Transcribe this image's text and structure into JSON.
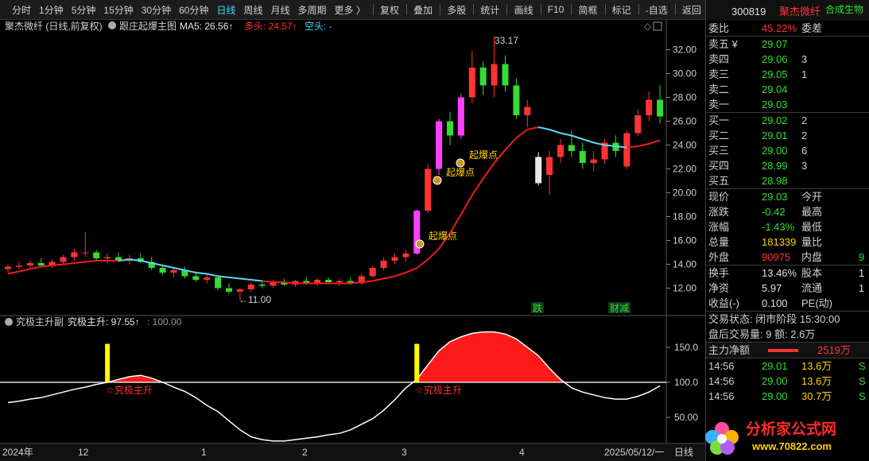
{
  "toolbar": {
    "periods": [
      "分时",
      "1分钟",
      "5分钟",
      "15分钟",
      "30分钟",
      "60分钟",
      "日线",
      "周线",
      "月线",
      "多周期",
      "更多 〉"
    ],
    "tools": [
      "复权",
      "叠加",
      "多股",
      "统计",
      "画线",
      "F10",
      "简框",
      "标记",
      "-自选",
      "返回"
    ]
  },
  "chart_data": [
    {
      "type": "candlestick",
      "title": "聚杰微纤 (日线,前复权)",
      "indicator": "跟庄起爆主图",
      "ma5": "MA5: 26.56↑",
      "bull": "多头: 24.57↑",
      "bear": "空头: -",
      "candles": [
        [
          13.6,
          14.0,
          13.3,
          13.8
        ],
        [
          13.8,
          14.2,
          13.6,
          13.9
        ],
        [
          13.9,
          14.3,
          13.7,
          14.1
        ],
        [
          14.1,
          14.5,
          13.8,
          13.9
        ],
        [
          13.9,
          14.4,
          13.7,
          14.2
        ],
        [
          14.2,
          14.8,
          14.0,
          14.6
        ],
        [
          14.6,
          15.3,
          14.3,
          15.0
        ],
        [
          15.0,
          16.7,
          14.6,
          15.0
        ],
        [
          15.0,
          15.2,
          14.3,
          14.5
        ],
        [
          14.5,
          14.9,
          14.1,
          14.6
        ],
        [
          14.6,
          15.0,
          14.2,
          14.3
        ],
        [
          14.3,
          14.8,
          14.0,
          14.5
        ],
        [
          14.5,
          14.9,
          14.1,
          14.2
        ],
        [
          14.2,
          14.6,
          13.5,
          13.7
        ],
        [
          13.7,
          14.0,
          13.1,
          13.3
        ],
        [
          13.3,
          13.7,
          12.9,
          13.5
        ],
        [
          13.5,
          13.8,
          12.8,
          13.0
        ],
        [
          13.0,
          13.4,
          12.5,
          12.7
        ],
        [
          12.7,
          13.2,
          12.4,
          12.9
        ],
        [
          12.9,
          13.1,
          11.8,
          12.0
        ],
        [
          12.0,
          12.4,
          11.5,
          11.7
        ],
        [
          11.7,
          12.0,
          11.0,
          11.9
        ],
        [
          11.9,
          12.5,
          11.7,
          12.3
        ],
        [
          12.3,
          12.6,
          12.0,
          12.2
        ],
        [
          12.2,
          12.7,
          12.0,
          12.5
        ],
        [
          12.5,
          12.8,
          12.2,
          12.3
        ],
        [
          12.3,
          12.7,
          12.1,
          12.6
        ],
        [
          12.6,
          12.9,
          12.3,
          12.4
        ],
        [
          12.4,
          12.8,
          12.2,
          12.7
        ],
        [
          12.7,
          12.9,
          12.4,
          12.5
        ],
        [
          12.5,
          12.8,
          12.2,
          12.6
        ],
        [
          12.6,
          12.9,
          12.3,
          12.4
        ],
        [
          12.4,
          13.2,
          12.3,
          13.0
        ],
        [
          13.0,
          13.9,
          12.9,
          13.7
        ],
        [
          13.7,
          14.6,
          13.5,
          14.3
        ],
        [
          14.3,
          14.9,
          14.0,
          14.6
        ],
        [
          14.6,
          15.2,
          14.2,
          14.9
        ],
        [
          14.9,
          18.6,
          14.8,
          18.5
        ],
        [
          18.5,
          22.4,
          18.3,
          22.0
        ],
        [
          22.0,
          26.2,
          21.5,
          26.0
        ],
        [
          26.0,
          26.8,
          24.0,
          24.8
        ],
        [
          24.8,
          28.3,
          24.5,
          28.0
        ],
        [
          28.0,
          31.9,
          27.5,
          30.5
        ],
        [
          30.5,
          31.0,
          28.2,
          29.0
        ],
        [
          29.0,
          33.17,
          28.0,
          30.8
        ],
        [
          30.8,
          31.5,
          28.5,
          29.0
        ],
        [
          29.0,
          29.6,
          26.2,
          26.5
        ],
        [
          26.5,
          27.8,
          25.5,
          27.2
        ],
        [
          23.0,
          23.4,
          20.6,
          20.8
        ],
        [
          21.5,
          23.5,
          19.8,
          23.0
        ],
        [
          23.0,
          24.5,
          22.5,
          24.0
        ],
        [
          24.0,
          25.2,
          23.0,
          23.5
        ],
        [
          23.5,
          24.2,
          22.0,
          22.5
        ],
        [
          22.5,
          23.5,
          21.8,
          22.8
        ],
        [
          22.8,
          24.5,
          22.4,
          24.2
        ],
        [
          24.2,
          24.8,
          23.0,
          23.5
        ],
        [
          22.2,
          25.2,
          22.0,
          25.0
        ],
        [
          25.0,
          27.0,
          24.8,
          26.5
        ],
        [
          26.5,
          28.5,
          26.0,
          27.8
        ],
        [
          27.8,
          29.0,
          25.8,
          26.4
        ]
      ],
      "candle_colors": [
        "#ff3333",
        "#ff3333",
        "#ff3333",
        "#33dd33",
        "#ff3333",
        "#ff3333",
        "#ff3333",
        "#ff3333",
        "#33dd33",
        "#ff3333",
        "#33dd33",
        "#ff3333",
        "#33dd33",
        "#33dd33",
        "#33dd33",
        "#ff3333",
        "#33dd33",
        "#33dd33",
        "#ff3333",
        "#33dd33",
        "#33dd33",
        "#ff3333",
        "#ff3333",
        "#33dd33",
        "#ff3333",
        "#33dd33",
        "#ff3333",
        "#33dd33",
        "#ff3333",
        "#33dd33",
        "#ff3333",
        "#33dd33",
        "#ff3333",
        "#ff3333",
        "#ff3333",
        "#ff3333",
        "#ff3333",
        "#ff40ff",
        "#ff3333",
        "#ff40ff",
        "#33dd33",
        "#ff40ff",
        "#ff3333",
        "#33dd33",
        "#ff3333",
        "#33dd33",
        "#33dd33",
        "#ff3333",
        "#e8e8e8",
        "#ff3333",
        "#ff3333",
        "#33dd33",
        "#33dd33",
        "#ff3333",
        "#ff3333",
        "#33dd33",
        "#ff3333",
        "#ff3333",
        "#ff3333",
        "#33dd33"
      ],
      "lines": [
        {
          "color": "#ee1c1c",
          "values": [
            13.2,
            13.4,
            13.6,
            13.8,
            13.9,
            14.0,
            14.1,
            14.2,
            14.3,
            14.3,
            14.3,
            null,
            null,
            null,
            null,
            null,
            null,
            null,
            null,
            null,
            null,
            null,
            null,
            12.6,
            12.5,
            12.5,
            12.4,
            12.4,
            12.4,
            12.4,
            12.4,
            12.4,
            12.5,
            12.6,
            12.8,
            13.0,
            13.3,
            13.7,
            14.4,
            15.3,
            16.6,
            18.2,
            19.8,
            21.2,
            22.5,
            23.6,
            24.6,
            25.3,
            25.5,
            null,
            null,
            null,
            null,
            null,
            null,
            null,
            23.8,
            23.9,
            24.1,
            24.4
          ]
        },
        {
          "color": "#5ad8f0",
          "values": [
            null,
            null,
            null,
            null,
            null,
            null,
            null,
            null,
            null,
            null,
            14.3,
            14.4,
            14.3,
            14.1,
            13.9,
            13.7,
            13.5,
            13.3,
            13.2,
            13.0,
            12.9,
            12.8,
            12.7,
            12.6,
            null,
            null,
            null,
            null,
            null,
            null,
            null,
            null,
            null,
            null,
            null,
            null,
            null,
            null,
            null,
            null,
            null,
            null,
            null,
            null,
            null,
            null,
            null,
            null,
            25.5,
            25.3,
            25.0,
            24.8,
            24.5,
            24.2,
            24.0,
            23.9,
            23.8,
            null,
            null,
            null
          ]
        }
      ],
      "ylim": [
        9.8,
        33.5
      ],
      "yticks": [
        {
          "value": 32,
          "label": "32.00"
        },
        {
          "value": 30,
          "label": "30.00"
        },
        {
          "value": 28,
          "label": "28.00"
        },
        {
          "value": 26,
          "label": "26.00"
        },
        {
          "value": 24,
          "label": "24.00"
        },
        {
          "value": 22,
          "label": "22.00"
        },
        {
          "value": 20,
          "label": "20.00"
        },
        {
          "value": 18,
          "label": "18.00"
        },
        {
          "value": 16,
          "label": "16.00"
        },
        {
          "value": 14,
          "label": "14.00"
        },
        {
          "value": 12,
          "label": "12.00"
        }
      ],
      "annotations": [
        "33.17",
        "←11.00",
        "起爆点",
        "起爆点",
        "起爆点",
        "跌",
        "财减"
      ],
      "x_labels": [
        "2024年",
        "12",
        "1",
        "2",
        "3",
        "4",
        "2025/05/12/一"
      ],
      "period": "日线"
    },
    {
      "type": "line",
      "title": "究极主升副",
      "current": "究极主升: 97.55↑",
      "reference_label": ": 100.00",
      "reference": 100,
      "values": [
        71,
        73,
        76,
        78,
        82,
        86,
        90,
        93,
        97,
        100,
        104,
        108,
        110,
        106,
        100,
        93,
        87,
        78,
        67,
        58,
        45,
        32,
        22,
        18,
        16,
        16,
        18,
        20,
        22,
        25,
        27,
        32,
        40,
        48,
        60,
        75,
        92,
        104,
        125,
        145,
        158,
        165,
        170,
        172,
        172,
        169,
        162,
        150,
        138,
        120,
        104,
        92,
        86,
        82,
        78,
        76,
        76,
        80,
        86,
        95
      ],
      "signals": [
        null,
        null,
        null,
        null,
        null,
        null,
        null,
        null,
        null,
        155,
        null,
        null,
        null,
        null,
        null,
        null,
        null,
        null,
        null,
        null,
        null,
        null,
        null,
        null,
        null,
        null,
        null,
        null,
        null,
        null,
        null,
        null,
        null,
        null,
        null,
        null,
        null,
        155,
        null,
        null,
        null,
        null,
        null,
        null,
        null,
        null,
        null,
        null,
        null,
        null,
        null,
        null,
        null,
        null,
        null,
        null,
        null,
        null,
        null,
        null
      ],
      "signal_label": "☆究极主升",
      "line_color": "#ffffff",
      "fill_color": "#ff1a1a",
      "signal_color": "#ffff00",
      "ylim": [
        13.6,
        192
      ],
      "yticks": [
        {
          "value": 150,
          "label": "150.0"
        },
        {
          "value": 100,
          "label": "100.0"
        },
        {
          "value": 50,
          "label": "50.00"
        }
      ]
    }
  ],
  "quote": {
    "code": "300819",
    "name": "聚杰微纤",
    "sector": "合成生物",
    "order_ratio": [
      "委比",
      "45.22%",
      "委差"
    ],
    "asks": [
      [
        "卖五 ¥",
        "29.07"
      ],
      [
        "卖四",
        "29.06",
        "3"
      ],
      [
        "卖三",
        "29.05",
        "1"
      ],
      [
        "卖二",
        "29.04"
      ],
      [
        "卖一",
        "29.03"
      ]
    ],
    "bids": [
      [
        "买一",
        "29.02",
        "2"
      ],
      [
        "买二",
        "29.01",
        "2"
      ],
      [
        "买三",
        "29.00",
        "6"
      ],
      [
        "买四",
        "28.99",
        "3"
      ],
      [
        "买五",
        "28.98"
      ]
    ],
    "stats": [
      [
        "现价",
        "29.03",
        "今开"
      ],
      [
        "涨跌",
        "-0.42",
        "最高"
      ],
      [
        "涨幅",
        "-1.43%",
        "最低"
      ],
      [
        "总量",
        "181339",
        "量比"
      ],
      [
        "外盘",
        "90975",
        "内盘",
        "9"
      ]
    ],
    "stats2": [
      [
        "换手",
        "13.46%",
        "股本",
        "1"
      ],
      [
        "净资",
        "5.97",
        "流通",
        "1"
      ],
      [
        "收益(-)",
        "0.100",
        "PE(动)"
      ]
    ],
    "status": [
      "交易状态: 闭市阶段 15:30:00",
      "盘后交易量: 9  额: 2.6万"
    ],
    "main_flow": [
      "主力净额",
      "2519万"
    ],
    "trades": [
      [
        "14:56",
        "29.01",
        "13.6万",
        "S"
      ],
      [
        "14:56",
        "29.00",
        "13.6万",
        "S"
      ],
      [
        "14:56",
        "29.00",
        "30.7万",
        "S"
      ]
    ]
  },
  "watermark": [
    "分析家公式网",
    "www.70822.com"
  ]
}
